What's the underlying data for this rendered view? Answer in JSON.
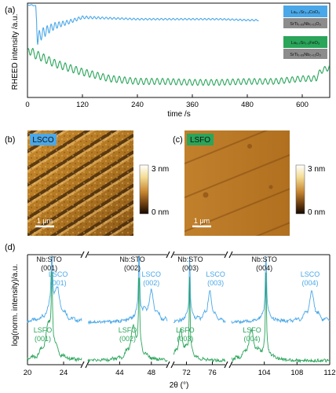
{
  "panel_a": {
    "letter": "(a)",
    "legend": {
      "lsco_film": "La₀.₇Sr₀.₃CoO₃",
      "lsco_substrate": "SrTi₀.₉₉Nb₀.₀₁O₃",
      "lsfo_film": "La₀.₇Sr₀.₃FeO₃",
      "lsfo_substrate": "SrTi₀.₉₉Nb₀.₀₁O₃"
    }
  },
  "panel_b": {
    "letter": "(b)",
    "tag": "LSCO",
    "scale_bar": "1 μm",
    "cbar_max": "3 nm",
    "cbar_min": "0 nm"
  },
  "panel_c": {
    "letter": "(c)",
    "tag": "LSFO",
    "scale_bar": "1 μm",
    "cbar_max": "3 nm",
    "cbar_min": "0 nm"
  },
  "panel_d": {
    "letter": "(d)",
    "peak_labels": [
      {
        "text": [
          "Nb:STO",
          "(001)"
        ],
        "color": "#111111",
        "x_deg": 22.4
      },
      {
        "text": [
          "LSCO",
          "(001)"
        ],
        "color": "#4aa8e8",
        "x_deg": 23.4
      },
      {
        "text": [
          "LSFO",
          "(001)"
        ],
        "color": "#2aa55a",
        "x_deg": 21.7
      },
      {
        "text": [
          "Nb:STO",
          "(002)"
        ],
        "color": "#111111",
        "x_deg": 45.6
      },
      {
        "text": [
          "LSCO",
          "(002)"
        ],
        "color": "#4aa8e8",
        "x_deg": 48.0
      },
      {
        "text": [
          "LSFO",
          "(002)"
        ],
        "color": "#2aa55a",
        "x_deg": 45.0
      },
      {
        "text": [
          "Nb:STO",
          "(003)"
        ],
        "color": "#111111",
        "x_deg": 72.6
      },
      {
        "text": [
          "LSCO",
          "(003)"
        ],
        "color": "#4aa8e8",
        "x_deg": 76.5
      },
      {
        "text": [
          "LSFO",
          "(003)"
        ],
        "color": "#2aa55a",
        "x_deg": 71.8
      },
      {
        "text": [
          "Nb:STO",
          "(004)"
        ],
        "color": "#111111",
        "x_deg": 104.0
      },
      {
        "text": [
          "LSCO",
          "(004)"
        ],
        "color": "#4aa8e8",
        "x_deg": 109.6
      },
      {
        "text": [
          "LSFO",
          "(004)"
        ],
        "color": "#2aa55a",
        "x_deg": 102.5
      }
    ]
  },
  "chart_data": [
    {
      "type": "line",
      "xlabel": "time /s",
      "ylabel": "RHEED intensity /a.u.",
      "xlim": [
        0,
        660
      ],
      "xticks": [
        0,
        120,
        240,
        360,
        480,
        600
      ],
      "yticks": [],
      "grid": false,
      "legend_position": "right",
      "series": [
        {
          "name": "La₀.₇Sr₀.₃CoO₃ on SrTi₀.₉₉Nb₀.₀₁O₃",
          "color": "#4aa8e8",
          "x": [
            0,
            10,
            18,
            22,
            30,
            45,
            60,
            90,
            120,
            180,
            240,
            300,
            360,
            420,
            480,
            505
          ],
          "y": [
            0.98,
            0.98,
            0.97,
            0.62,
            0.67,
            0.72,
            0.76,
            0.8,
            0.85,
            0.84,
            0.83,
            0.83,
            0.83,
            0.83,
            0.82,
            0.82
          ],
          "oscillation_period_s": 8.6
        },
        {
          "name": "La₀.₇Sr₀.₃FeO₃ on SrTi₀.₉₉Nb₀.₀₁O₃",
          "color": "#2aa55a",
          "x": [
            0,
            5,
            15,
            30,
            60,
            120,
            180,
            240,
            300,
            360,
            420,
            480,
            540,
            600,
            630,
            640,
            660
          ],
          "y": [
            0.52,
            0.5,
            0.46,
            0.43,
            0.36,
            0.27,
            0.2,
            0.17,
            0.17,
            0.16,
            0.16,
            0.17,
            0.17,
            0.2,
            0.2,
            0.28,
            0.32
          ],
          "oscillation_period_s": 11.8
        }
      ]
    },
    {
      "type": "line",
      "xlabel": "2θ (°)",
      "ylabel": "log(norm. intensity)/a.u.",
      "broken_x_axis": true,
      "segments": [
        {
          "range": [
            20,
            26
          ],
          "ticks": [
            20,
            24
          ]
        },
        {
          "range": [
            40,
            50
          ],
          "ticks": [
            44,
            48
          ]
        },
        {
          "range": [
            70,
            78
          ],
          "ticks": [
            72,
            76
          ]
        },
        {
          "range": [
            100,
            112
          ],
          "ticks": [
            104,
            108,
            112
          ]
        }
      ],
      "yticks": [],
      "series": [
        {
          "name": "LSCO",
          "color": "#4aa8e8",
          "substrate_peaks_deg": [
            22.7,
            46.45,
            72.5,
            104.2
          ],
          "film_peaks_deg": [
            23.3,
            48.0,
            75.6,
            109.8
          ]
        },
        {
          "name": "LSFO",
          "color": "#2aa55a",
          "substrate_peaks_deg": [
            22.7,
            46.45,
            72.5,
            104.2
          ],
          "film_peaks_deg": [
            22.3,
            45.7,
            71.1,
            102.4
          ]
        }
      ]
    }
  ]
}
